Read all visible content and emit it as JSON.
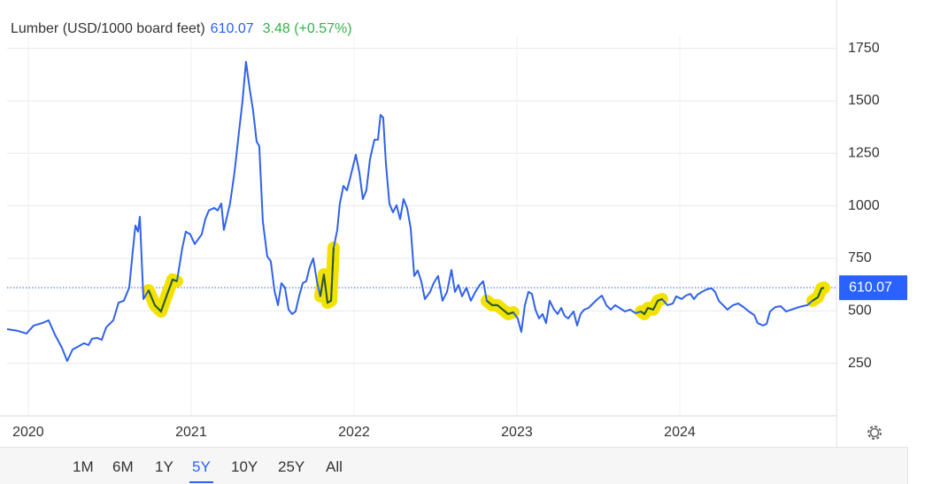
{
  "header": {
    "title": "Lumber (USD/1000 board feet)",
    "price": "610.07",
    "change": "3.48 (+0.57%)"
  },
  "chart_data": {
    "type": "line",
    "x": [
      2019.87,
      2019.935,
      2019.989,
      2020.033,
      2020.087,
      2020.125,
      2020.163,
      2020.207,
      2020.239,
      2020.272,
      2020.304,
      2020.342,
      2020.37,
      2020.391,
      2020.424,
      2020.451,
      2020.478,
      2020.522,
      2020.554,
      2020.587,
      2020.62,
      2020.641,
      2020.658,
      2020.674,
      2020.685,
      2020.707,
      2020.739,
      2020.777,
      2020.815,
      2020.848,
      2020.886,
      2020.913,
      2020.946,
      2020.967,
      2020.995,
      2021.022,
      2021.065,
      2021.087,
      2021.109,
      2021.141,
      2021.163,
      2021.185,
      2021.201,
      2021.239,
      2021.266,
      2021.293,
      2021.315,
      2021.337,
      2021.359,
      2021.38,
      2021.402,
      2021.418,
      2021.44,
      2021.467,
      2021.489,
      2021.511,
      2021.533,
      2021.554,
      2021.576,
      2021.598,
      2021.62,
      2021.641,
      2021.663,
      2021.685,
      2021.707,
      2021.728,
      2021.75,
      2021.772,
      2021.793,
      2021.815,
      2021.837,
      2021.859,
      2021.875,
      2021.897,
      2021.913,
      2021.935,
      2021.957,
      2021.978,
      2022.011,
      2022.033,
      2022.054,
      2022.076,
      2022.098,
      2022.125,
      2022.147,
      2022.163,
      2022.179,
      2022.196,
      2022.217,
      2022.239,
      2022.261,
      2022.283,
      2022.304,
      2022.326,
      2022.348,
      2022.37,
      2022.391,
      2022.413,
      2022.435,
      2022.467,
      2022.489,
      2022.516,
      2022.543,
      2022.571,
      2022.598,
      2022.62,
      2022.641,
      2022.663,
      2022.69,
      2022.717,
      2022.745,
      2022.772,
      2022.793,
      2022.815,
      2022.848,
      2022.88,
      2022.913,
      2022.946,
      2022.978,
      2023.005,
      2023.027,
      2023.049,
      2023.071,
      2023.092,
      2023.114,
      2023.136,
      2023.158,
      2023.179,
      2023.201,
      2023.228,
      2023.25,
      2023.272,
      2023.293,
      2023.315,
      2023.348,
      2023.37,
      2023.391,
      2023.413,
      2023.44,
      2023.467,
      2023.495,
      2023.522,
      2023.549,
      2023.576,
      2023.603,
      2023.63,
      2023.663,
      2023.696,
      2023.728,
      2023.761,
      2023.783,
      2023.804,
      2023.837,
      2023.864,
      2023.891,
      2023.924,
      2023.957,
      2023.978,
      2024.011,
      2024.038,
      2024.065,
      2024.087,
      2024.109,
      2024.136,
      2024.168,
      2024.196,
      2024.217,
      2024.239,
      2024.266,
      2024.293,
      2024.326,
      2024.359,
      2024.391,
      2024.424,
      2024.457,
      2024.478,
      2024.511,
      2024.533,
      2024.554,
      2024.587,
      2024.62,
      2024.652,
      2024.685,
      2024.717,
      2024.75,
      2024.783,
      2024.815,
      2024.848,
      2024.87,
      2024.886
    ],
    "series": [
      {
        "color": "#2f62ea",
        "values": [
          413,
          405,
          392,
          430,
          442,
          455,
          388,
          324,
          261,
          316,
          329,
          346,
          337,
          367,
          371,
          362,
          421,
          455,
          539,
          548,
          611,
          780,
          906,
          877,
          948,
          556,
          598,
          527,
          497,
          569,
          649,
          641,
          801,
          877,
          864,
          818,
          864,
          936,
          978,
          990,
          978,
          1011,
          885,
          1011,
          1159,
          1349,
          1496,
          1686,
          1559,
          1454,
          1306,
          1285,
          927,
          759,
          737,
          598,
          527,
          632,
          611,
          506,
          485,
          497,
          569,
          632,
          641,
          708,
          750,
          641,
          569,
          674,
          539,
          548,
          801,
          885,
          1011,
          1095,
          1074,
          1138,
          1243,
          1159,
          1032,
          1074,
          1222,
          1315,
          1315,
          1433,
          1420,
          1201,
          1011,
          969,
          1003,
          936,
          1032,
          990,
          893,
          666,
          692,
          641,
          556,
          590,
          632,
          666,
          548,
          590,
          695,
          590,
          623,
          569,
          611,
          548,
          590,
          623,
          641,
          548,
          527,
          527,
          506,
          485,
          493,
          464,
          400,
          527,
          590,
          581,
          506,
          464,
          485,
          442,
          548,
          506,
          485,
          514,
          476,
          464,
          497,
          430,
          485,
          506,
          514,
          535,
          556,
          573,
          527,
          506,
          527,
          514,
          497,
          506,
          489,
          497,
          485,
          514,
          506,
          548,
          556,
          527,
          535,
          569,
          556,
          573,
          581,
          556,
          577,
          590,
          603,
          607,
          590,
          548,
          527,
          506,
          527,
          535,
          518,
          497,
          480,
          442,
          430,
          438,
          497,
          518,
          522,
          497,
          506,
          514,
          522,
          527,
          548,
          565,
          607,
          610.07
        ]
      }
    ],
    "highlights": [
      [
        2020.739,
        2020.913
      ],
      [
        2021.783,
        2021.88
      ],
      [
        2022.815,
        2022.978
      ],
      [
        2023.761,
        2023.891
      ],
      [
        2024.804,
        2024.891
      ]
    ],
    "xlim": [
      2019.87,
      2024.962
    ],
    "xticks": [
      2020,
      2021,
      2022,
      2023,
      2024
    ],
    "ylim": [
      0,
      1980
    ],
    "yticks": [
      250,
      500,
      750,
      1000,
      1250,
      1500,
      1750
    ],
    "grid": true
  },
  "range_buttons": {
    "items": [
      "1M",
      "6M",
      "1Y",
      "5Y",
      "10Y",
      "25Y",
      "All"
    ],
    "selected": "5Y"
  }
}
